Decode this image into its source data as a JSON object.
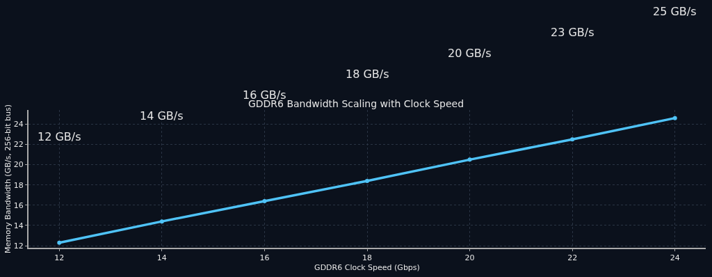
{
  "chart_data": {
    "type": "line",
    "title": "GDDR6 Bandwidth Scaling with Clock Speed",
    "xlabel": "GDDR6 Clock Speed (Gbps)",
    "ylabel": "Memory Bandwidth (GB/s, 256-bit bus)",
    "x": [
      12,
      14,
      16,
      18,
      20,
      22,
      24
    ],
    "series": [
      {
        "color": "#4fc3f7",
        "values": [
          12.3,
          14.4,
          16.4,
          18.4,
          20.5,
          22.5,
          24.6
        ]
      }
    ],
    "xlim": [
      11.4,
      24.6
    ],
    "xticks": [
      12,
      14,
      16,
      18,
      20,
      22,
      24
    ],
    "ylim": [
      11.8,
      25.4
    ],
    "yticks": [
      12,
      14,
      16,
      18,
      20,
      22,
      24
    ],
    "grid": true,
    "marker": "circle",
    "line_style": "solid",
    "annotations": [
      "12 GB/s",
      "14 GB/s",
      "16 GB/s",
      "18 GB/s",
      "20 GB/s",
      "23 GB/s",
      "25 GB/s"
    ]
  }
}
